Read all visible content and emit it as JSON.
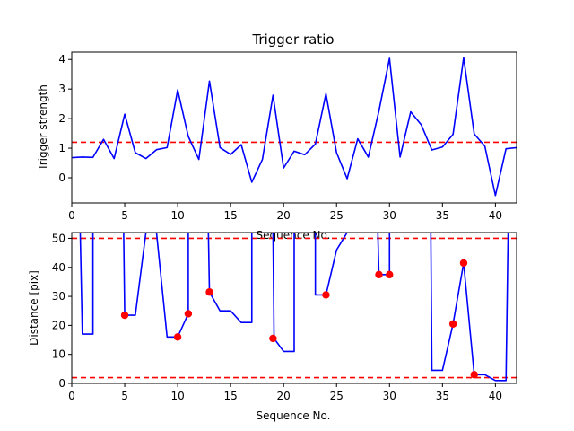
{
  "chart_data": [
    {
      "type": "line",
      "title": "Trigger ratio",
      "xlabel": "Sequence No.",
      "ylabel": "Trigger strength",
      "xlim": [
        0,
        42
      ],
      "ylim": [
        -0.85,
        4.25
      ],
      "xticks": [
        0,
        5,
        10,
        15,
        20,
        25,
        30,
        35,
        40
      ],
      "yticks": [
        0,
        1,
        2,
        3,
        4
      ],
      "grid": false,
      "series": [
        {
          "color": "#0000ff",
          "x": [
            0,
            1,
            2,
            3,
            4,
            5,
            6,
            7,
            8,
            9,
            10,
            11,
            12,
            13,
            14,
            15,
            16,
            17,
            18,
            19,
            20,
            21,
            22,
            23,
            24,
            25,
            26,
            27,
            28,
            29,
            30,
            31,
            32,
            33,
            34,
            35,
            36,
            37,
            38,
            39,
            40,
            41,
            42
          ],
          "y": [
            0.68,
            0.7,
            0.69,
            1.3,
            0.65,
            2.15,
            0.85,
            0.65,
            0.95,
            1.02,
            2.97,
            1.4,
            0.62,
            3.27,
            1.02,
            0.79,
            1.12,
            -0.15,
            0.62,
            2.79,
            0.33,
            0.9,
            0.78,
            1.14,
            2.84,
            0.85,
            -0.03,
            1.32,
            0.7,
            2.26,
            4.04,
            0.7,
            2.23,
            1.79,
            0.94,
            1.04,
            1.47,
            4.06,
            1.48,
            1.07,
            -0.6,
            0.98,
            1.02
          ]
        }
      ],
      "hlines": [
        {
          "y": 1.2,
          "color": "#ff0000",
          "style": "dashed"
        }
      ]
    },
    {
      "type": "line",
      "title": "",
      "xlabel": "Sequence No.",
      "ylabel": "Distance [pix]",
      "xlim": [
        0,
        42
      ],
      "ylim": [
        0,
        52
      ],
      "xticks": [
        0,
        5,
        10,
        15,
        20,
        25,
        30,
        35,
        40
      ],
      "yticks": [
        0,
        10,
        20,
        30,
        40,
        50
      ],
      "grid": false,
      "series": [
        {
          "color": "#0000ff",
          "x": [
            0.8,
            1.0,
            2.0,
            2.0,
            4.9,
            5.0,
            6.0,
            7.0,
            8.0,
            9.0,
            10.0,
            11.0,
            11.0,
            12.9,
            13.0,
            14.0,
            15.0,
            16.0,
            17.0,
            17.0,
            19.0,
            19.1,
            20.0,
            21.0,
            21.0,
            23.0,
            23.0,
            24.0,
            25.0,
            26.0,
            28.9,
            29.0,
            30.0,
            30.0,
            33.9,
            34.0,
            35.0,
            36.0,
            37.0,
            38.0,
            39.0,
            40.0,
            41.0,
            41.2
          ],
          "y": [
            52,
            17,
            17,
            52,
            52,
            23.5,
            23.5,
            52,
            52,
            16,
            16,
            24,
            52,
            52,
            31.5,
            25,
            25,
            21,
            21,
            52,
            52,
            15.5,
            11,
            11,
            52,
            52,
            30.5,
            30.5,
            46,
            52,
            52,
            37.5,
            37.5,
            52,
            52,
            4.5,
            4.5,
            20.5,
            41.5,
            3,
            3,
            1,
            1,
            52
          ]
        },
        {
          "color": "#ff0000",
          "marker": "circle",
          "x": [
            5,
            10,
            11,
            13,
            19,
            24,
            29,
            30,
            36,
            37,
            38
          ],
          "y": [
            23.5,
            16,
            24,
            31.5,
            15.5,
            30.5,
            37.5,
            37.5,
            20.5,
            41.5,
            3
          ]
        }
      ],
      "hlines": [
        {
          "y": 50,
          "color": "#ff0000",
          "style": "dashed"
        },
        {
          "y": 2,
          "color": "#ff0000",
          "style": "dashed"
        }
      ]
    }
  ]
}
